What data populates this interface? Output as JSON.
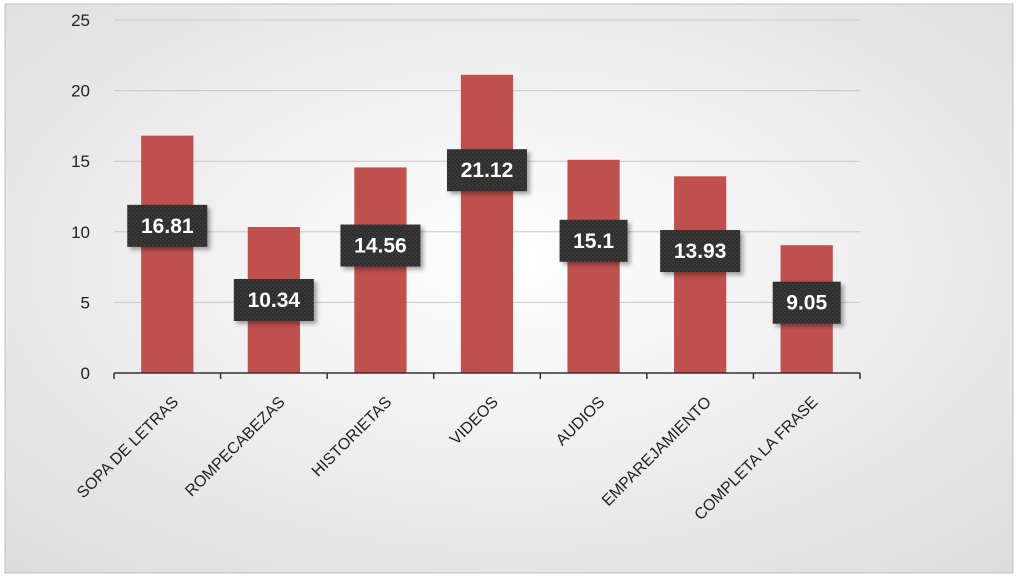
{
  "chart_data": {
    "type": "bar",
    "title": "",
    "xlabel": "",
    "ylabel": "",
    "categories": [
      "SOPA DE LETRAS",
      "ROMPECABEZAS",
      "HISTORIETAS",
      "VIDEOS",
      "AUDIOS",
      "EMPAREJAMIENTO",
      "COMPLETA LA FRASE"
    ],
    "values": [
      16.81,
      10.34,
      14.56,
      21.12,
      15.1,
      13.93,
      9.05
    ],
    "data_labels": [
      "16.81",
      "10.34",
      "14.56",
      "21.12",
      "15.1",
      "13.93",
      "9.05"
    ],
    "ylim": [
      0,
      25
    ],
    "yticks": [
      0,
      5,
      10,
      15,
      20,
      25
    ],
    "ytick_labels": [
      "0",
      "5",
      "10",
      "15",
      "20",
      "25"
    ],
    "grid": true,
    "legend": "none",
    "colors": {
      "bar": "#c0504d",
      "label_box": "#2e2e2e",
      "label_text": "#ffffff",
      "gridline": "#c8c8c8",
      "axis": "#333333"
    }
  }
}
